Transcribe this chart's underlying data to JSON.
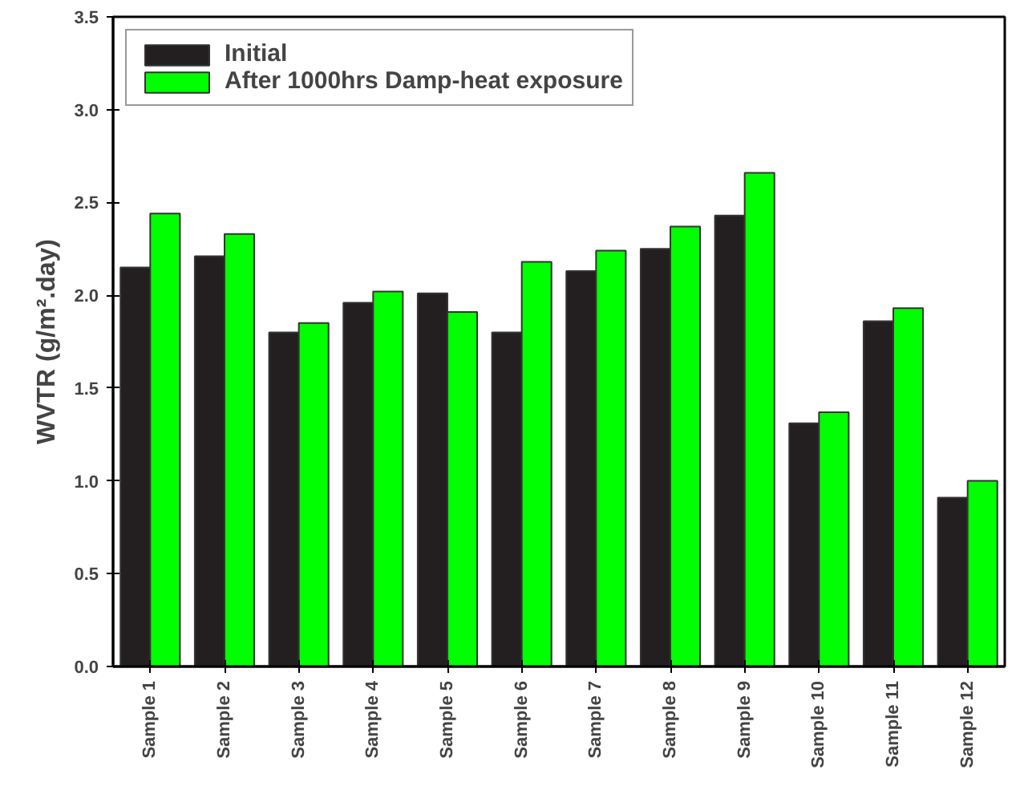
{
  "chart_data": {
    "type": "bar",
    "ylabel": "WVTR (g/m².day)",
    "categories": [
      "Sample 1",
      "Sample 2",
      "Sample 3",
      "Sample 4",
      "Sample 5",
      "Sample 6",
      "Sample 7",
      "Sample 8",
      "Sample 9",
      "Sample 10",
      "Sample 11",
      "Sample 12"
    ],
    "series": [
      {
        "name": "Initial",
        "color": "#231f20",
        "values": [
          2.15,
          2.21,
          1.8,
          1.96,
          2.01,
          1.8,
          2.13,
          2.25,
          2.43,
          1.31,
          1.86,
          0.91
        ]
      },
      {
        "name": "After 1000hrs Damp-heat exposure",
        "color": "#00ff00",
        "values": [
          2.44,
          2.33,
          1.85,
          2.02,
          1.91,
          2.18,
          2.24,
          2.37,
          2.66,
          1.37,
          1.93,
          1.0
        ]
      }
    ],
    "ylim": [
      0,
      3.5
    ],
    "yticks": [
      {
        "value": 0,
        "label": "0.0"
      },
      0.5,
      {
        "value": 1,
        "label": "1.0"
      },
      1.5,
      {
        "value": 2,
        "label": "2.0"
      },
      2.5,
      {
        "value": 3,
        "label": "3.0"
      },
      3.5
    ],
    "grid": false,
    "legend": "top left"
  }
}
